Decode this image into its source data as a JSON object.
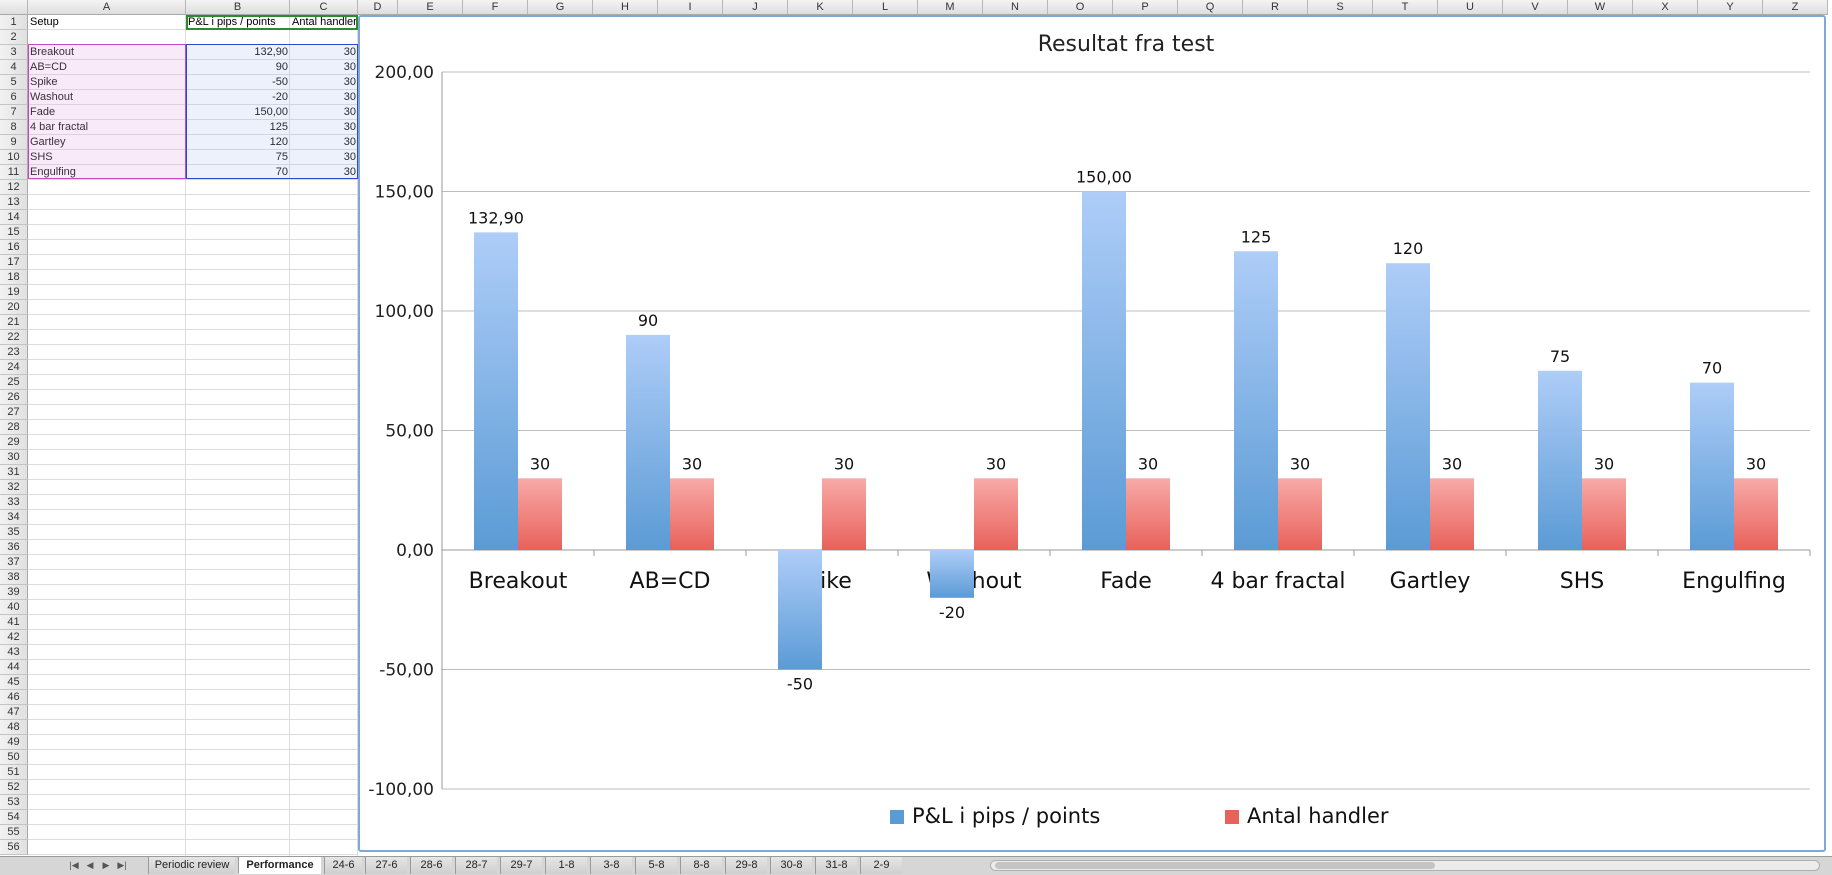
{
  "columns": [
    "A",
    "B",
    "C",
    "D",
    "E",
    "F",
    "G",
    "H",
    "I",
    "J",
    "K",
    "L",
    "M",
    "N",
    "O",
    "P",
    "Q",
    "R",
    "S",
    "T",
    "U",
    "V",
    "W",
    "X",
    "Y",
    "Z"
  ],
  "row_numbers": [
    "1",
    "2",
    "3",
    "4",
    "5",
    "6",
    "7",
    "8",
    "9",
    "10",
    "11",
    "12",
    "13",
    "14",
    "15",
    "16",
    "17",
    "18",
    "19",
    "20",
    "21",
    "22",
    "23",
    "24",
    "25",
    "26",
    "27",
    "28",
    "29",
    "30",
    "31",
    "32",
    "33",
    "34",
    "35",
    "36",
    "37",
    "38",
    "39",
    "40",
    "41",
    "42",
    "43",
    "44",
    "45",
    "46",
    "47",
    "48",
    "49",
    "50",
    "51",
    "52",
    "53",
    "54",
    "55",
    "56"
  ],
  "sheet": {
    "header": {
      "a": "Setup",
      "b": "P&L i pips / points",
      "c": "Antal handler"
    },
    "rows": [
      {
        "a": "Breakout",
        "b": "132,90",
        "c": "30"
      },
      {
        "a": "AB=CD",
        "b": "90",
        "c": "30"
      },
      {
        "a": "Spike",
        "b": "-50",
        "c": "30"
      },
      {
        "a": "Washout",
        "b": "-20",
        "c": "30"
      },
      {
        "a": "Fade",
        "b": "150,00",
        "c": "30"
      },
      {
        "a": "4 bar fractal",
        "b": "125",
        "c": "30"
      },
      {
        "a": "Gartley",
        "b": "120",
        "c": "30"
      },
      {
        "a": "SHS",
        "b": "75",
        "c": "30"
      },
      {
        "a": "Engulfing",
        "b": "70",
        "c": "30"
      }
    ]
  },
  "chart_data": {
    "type": "bar",
    "title": "Resultat fra test",
    "categories": [
      "Breakout",
      "AB=CD",
      "Spike",
      "Washout",
      "Fade",
      "4 bar fractal",
      "Gartley",
      "SHS",
      "Engulfing"
    ],
    "series": [
      {
        "name": "P&L i pips / points",
        "values": [
          132.9,
          90,
          -50,
          -20,
          150,
          125,
          120,
          75,
          70
        ],
        "labels": [
          "132,90",
          "90",
          "-50",
          "-20",
          "150,00",
          "125",
          "120",
          "75",
          "70"
        ]
      },
      {
        "name": "Antal handler",
        "values": [
          30,
          30,
          30,
          30,
          30,
          30,
          30,
          30,
          30
        ],
        "labels": [
          "30",
          "30",
          "30",
          "30",
          "30",
          "30",
          "30",
          "30",
          "30"
        ]
      }
    ],
    "ylim": [
      -100,
      200
    ],
    "yticks": [
      200,
      150,
      100,
      50,
      0,
      -50,
      -100
    ],
    "ytick_labels": [
      "200,00",
      "150,00",
      "100,00",
      "50,00",
      "0,00",
      "-50,00",
      "-100,00"
    ],
    "grid": true,
    "legend": "bottom",
    "colors": {
      "series1": "#5b9bd5",
      "series2": "#e8615a"
    }
  },
  "tabs": [
    "Periodic review",
    "Performance",
    "24-6",
    "27-6",
    "28-6",
    "28-7",
    "29-7",
    "1-8",
    "3-8",
    "5-8",
    "8-8",
    "29-8",
    "30-8",
    "31-8",
    "2-9"
  ],
  "active_tab": "Performance",
  "tab_nav_icons": [
    "first-sheet-icon",
    "prev-sheet-icon",
    "next-sheet-icon",
    "last-sheet-icon"
  ]
}
